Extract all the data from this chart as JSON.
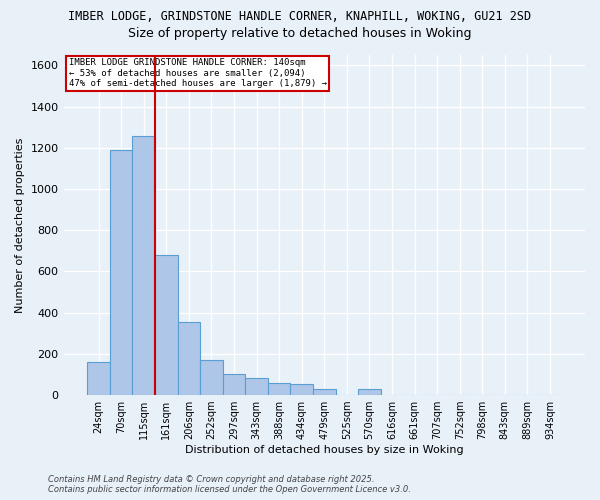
{
  "title_line1": "IMBER LODGE, GRINDSTONE HANDLE CORNER, KNAPHILL, WOKING, GU21 2SD",
  "title_line2": "Size of property relative to detached houses in Woking",
  "xlabel": "Distribution of detached houses by size in Woking",
  "ylabel": "Number of detached properties",
  "categories": [
    "24sqm",
    "70sqm",
    "115sqm",
    "161sqm",
    "206sqm",
    "252sqm",
    "297sqm",
    "343sqm",
    "388sqm",
    "434sqm",
    "479sqm",
    "525sqm",
    "570sqm",
    "616sqm",
    "661sqm",
    "707sqm",
    "752sqm",
    "798sqm",
    "843sqm",
    "889sqm",
    "934sqm"
  ],
  "values": [
    160,
    1190,
    1255,
    680,
    355,
    170,
    100,
    85,
    60,
    55,
    30,
    0,
    30,
    0,
    0,
    0,
    0,
    0,
    0,
    0,
    0
  ],
  "bar_color": "#aec6e8",
  "bar_edge_color": "#5a9fd4",
  "red_line_x": 2.5,
  "annotation_title": "IMBER LODGE GRINDSTONE HANDLE CORNER: 140sqm",
  "annotation_line1": "← 53% of detached houses are smaller (2,094)",
  "annotation_line2": "47% of semi-detached houses are larger (1,879) →",
  "annotation_box_color": "#ffffff",
  "annotation_box_edge": "#cc0000",
  "ylim": [
    0,
    1650
  ],
  "yticks": [
    0,
    200,
    400,
    600,
    800,
    1000,
    1200,
    1400,
    1600
  ],
  "footer1": "Contains HM Land Registry data © Crown copyright and database right 2025.",
  "footer2": "Contains public sector information licensed under the Open Government Licence v3.0.",
  "bg_color": "#e8f0f8",
  "plot_bg_color": "#e8f0f8",
  "grid_color": "#ffffff"
}
